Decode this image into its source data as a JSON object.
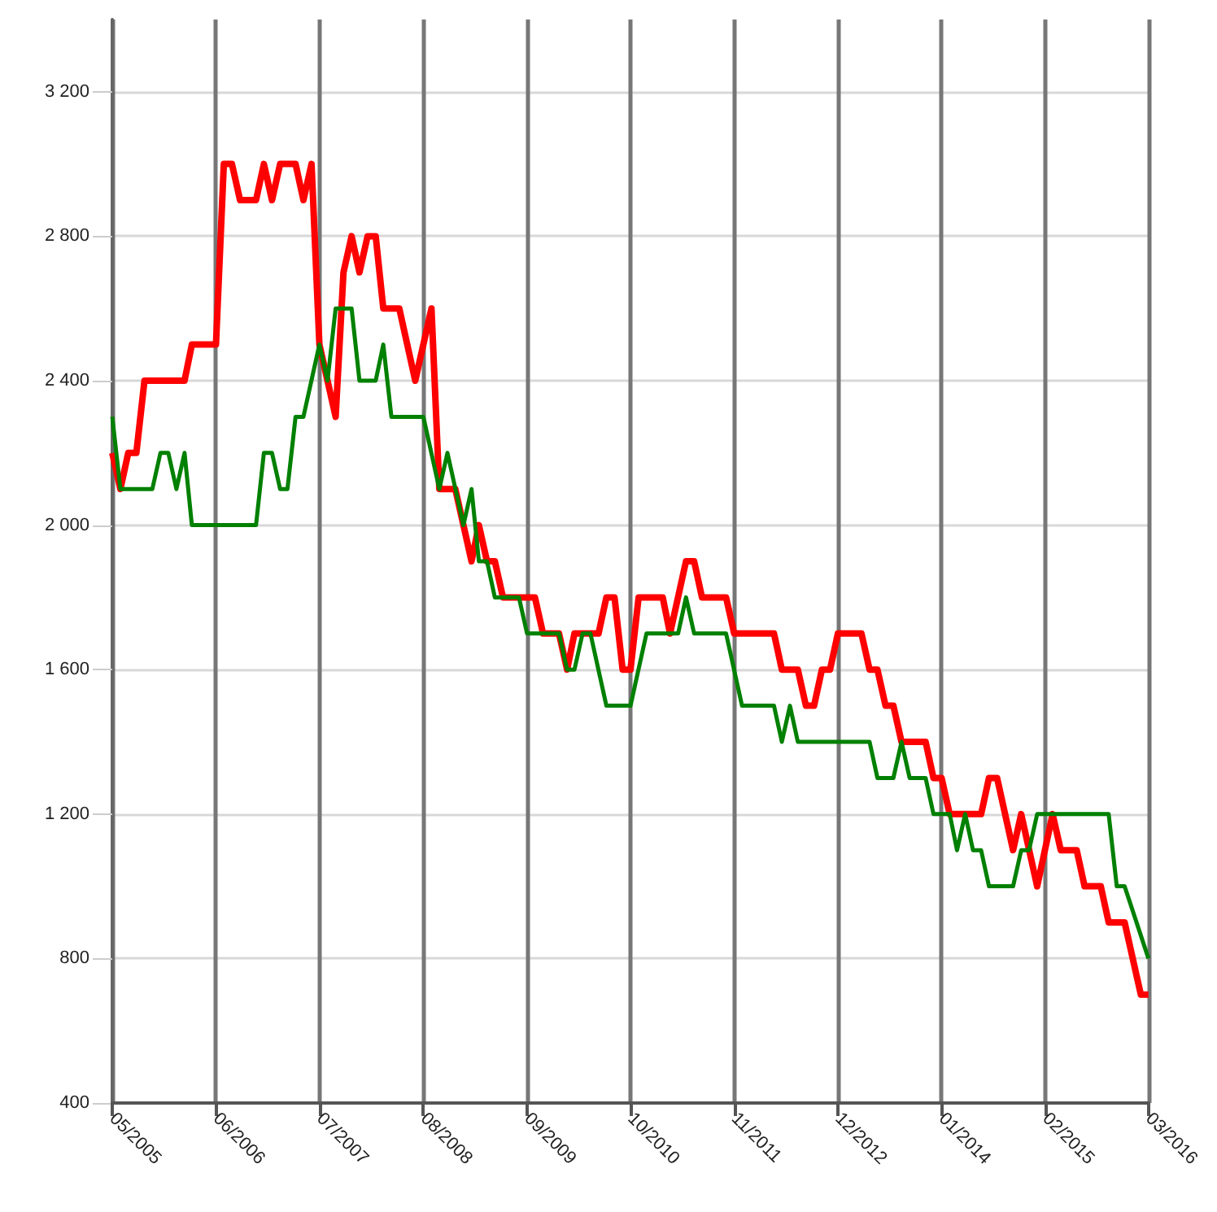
{
  "chart_data": {
    "type": "line",
    "xlim": [
      "2005-05",
      "2016-03"
    ],
    "ylim": [
      400,
      3400
    ],
    "xticks": [
      {
        "value": "2005-05",
        "label": "05/2005"
      },
      {
        "value": "2006-06",
        "label": "06/2006"
      },
      {
        "value": "2007-07",
        "label": "07/2007"
      },
      {
        "value": "2008-08",
        "label": "08/2008"
      },
      {
        "value": "2009-09",
        "label": "09/2009"
      },
      {
        "value": "2010-10",
        "label": "10/2010"
      },
      {
        "value": "2011-11",
        "label": "11/2011"
      },
      {
        "value": "2012-12",
        "label": "12/2012"
      },
      {
        "value": "2014-01",
        "label": "01/2014"
      },
      {
        "value": "2015-02",
        "label": "02/2015"
      },
      {
        "value": "2016-03",
        "label": "03/2016"
      }
    ],
    "yticks": [
      400,
      800,
      {
        "value": 1200,
        "label": "1 200"
      },
      {
        "value": 1600,
        "label": "1 600"
      },
      {
        "value": 2000,
        "label": "2 000"
      },
      {
        "value": 2400,
        "label": "2 400"
      },
      {
        "value": 2800,
        "label": "2 800"
      },
      {
        "value": 3200,
        "label": "3 200"
      }
    ],
    "grid": true,
    "marker": "none",
    "line_style": "solid",
    "series": [
      {
        "color": "#ff0000",
        "x": [
          "2005-05",
          "2005-06",
          "2005-07",
          "2005-08",
          "2005-09",
          "2006-02",
          "2006-03",
          "2006-06",
          "2006-07",
          "2006-08",
          "2006-09",
          "2006-11",
          "2006-12",
          "2007-01",
          "2007-02",
          "2007-04",
          "2007-05",
          "2007-06",
          "2007-07",
          "2007-08",
          "2007-09",
          "2007-10",
          "2007-11",
          "2007-12",
          "2008-01",
          "2008-02",
          "2008-03",
          "2008-05",
          "2008-07",
          "2008-09",
          "2008-10",
          "2008-12",
          "2009-02",
          "2009-03",
          "2009-04",
          "2009-05",
          "2009-06",
          "2009-10",
          "2009-11",
          "2010-01",
          "2010-02",
          "2010-03",
          "2010-06",
          "2010-07",
          "2010-08",
          "2010-09",
          "2010-10",
          "2010-11",
          "2011-02",
          "2011-03",
          "2011-05",
          "2011-06",
          "2011-07",
          "2011-10",
          "2011-11",
          "2012-04",
          "2012-05",
          "2012-07",
          "2012-08",
          "2012-09",
          "2012-10",
          "2012-11",
          "2012-12",
          "2013-03",
          "2013-04",
          "2013-05",
          "2013-06",
          "2013-07",
          "2013-08",
          "2013-11",
          "2013-12",
          "2014-01",
          "2014-02",
          "2014-06",
          "2014-07",
          "2014-08",
          "2014-10",
          "2014-11",
          "2015-01",
          "2015-03",
          "2015-04",
          "2015-06",
          "2015-07",
          "2015-09",
          "2015-10",
          "2015-12",
          "2016-02",
          "2016-03"
        ],
        "values": [
          2200,
          2100,
          2200,
          2200,
          2400,
          2400,
          2500,
          2500,
          3000,
          3000,
          2900,
          2900,
          3000,
          2900,
          3000,
          3000,
          2900,
          3000,
          2500,
          2400,
          2300,
          2700,
          2800,
          2700,
          2800,
          2800,
          2600,
          2600,
          2400,
          2600,
          2100,
          2100,
          1900,
          2000,
          1900,
          1900,
          1800,
          1800,
          1700,
          1700,
          1600,
          1700,
          1700,
          1800,
          1800,
          1600,
          1600,
          1800,
          1800,
          1700,
          1900,
          1900,
          1800,
          1800,
          1700,
          1700,
          1600,
          1600,
          1500,
          1500,
          1600,
          1600,
          1700,
          1700,
          1600,
          1600,
          1500,
          1500,
          1400,
          1400,
          1300,
          1300,
          1200,
          1200,
          1300,
          1300,
          1100,
          1200,
          1000,
          1200,
          1100,
          1100,
          1000,
          1000,
          900,
          900,
          700,
          700
        ]
      },
      {
        "color": "#008000",
        "x": [
          "2005-05",
          "2005-06",
          "2005-10",
          "2005-11",
          "2005-12",
          "2006-01",
          "2006-02",
          "2006-03",
          "2006-11",
          "2006-12",
          "2007-01",
          "2007-02",
          "2007-03",
          "2007-04",
          "2007-05",
          "2007-07",
          "2007-08",
          "2007-09",
          "2007-11",
          "2007-12",
          "2008-02",
          "2008-03",
          "2008-04",
          "2008-08",
          "2008-10",
          "2008-11",
          "2009-01",
          "2009-02",
          "2009-03",
          "2009-04",
          "2009-05",
          "2009-08",
          "2009-09",
          "2010-01",
          "2010-02",
          "2010-03",
          "2010-04",
          "2010-05",
          "2010-07",
          "2010-10",
          "2010-12",
          "2011-04",
          "2011-05",
          "2011-06",
          "2011-10",
          "2011-12",
          "2012-04",
          "2012-05",
          "2012-06",
          "2012-07",
          "2013-04",
          "2013-05",
          "2013-07",
          "2013-08",
          "2013-09",
          "2013-11",
          "2013-12",
          "2014-02",
          "2014-03",
          "2014-04",
          "2014-05",
          "2014-06",
          "2014-07",
          "2014-10",
          "2014-11",
          "2014-12",
          "2015-01",
          "2015-10",
          "2015-11",
          "2015-12",
          "2016-03"
        ],
        "values": [
          2300,
          2100,
          2100,
          2200,
          2200,
          2100,
          2200,
          2000,
          2000,
          2200,
          2200,
          2100,
          2100,
          2300,
          2300,
          2500,
          2400,
          2600,
          2600,
          2400,
          2400,
          2500,
          2300,
          2300,
          2100,
          2200,
          2000,
          2100,
          1900,
          1900,
          1800,
          1800,
          1700,
          1700,
          1600,
          1600,
          1700,
          1700,
          1500,
          1500,
          1700,
          1700,
          1800,
          1700,
          1700,
          1500,
          1500,
          1400,
          1500,
          1400,
          1400,
          1300,
          1300,
          1400,
          1300,
          1300,
          1200,
          1200,
          1100,
          1200,
          1100,
          1100,
          1000,
          1000,
          1100,
          1100,
          1200,
          1200,
          1000,
          1000,
          800
        ]
      }
    ]
  }
}
